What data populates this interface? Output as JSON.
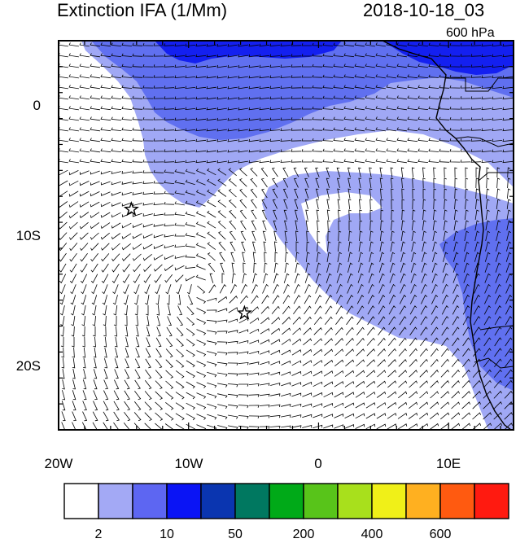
{
  "header": {
    "title": "Extinction IFA (1/Mm)",
    "datetime": "2018-10-18_03",
    "level": "600 hPa"
  },
  "map": {
    "lon_range": [
      -20,
      15
    ],
    "lat_range": [
      -25,
      5
    ],
    "lon_ticks": [
      "20W",
      "10W",
      "0",
      "10E"
    ],
    "lat_ticks": [
      "0",
      "10S",
      "20S"
    ],
    "markers": [
      {
        "type": "star-icon",
        "lon": -14.4,
        "lat": -8.0
      },
      {
        "type": "star-icon",
        "lon": -5.7,
        "lat": -16.0
      }
    ],
    "colors": {
      "ocean": "#ffffff",
      "level1": "#a0a8f5",
      "level2": "#6070f0",
      "level3": "#1420f0"
    }
  },
  "colorbar": {
    "labels": [
      "2",
      "10",
      "50",
      "200",
      "400",
      "600"
    ],
    "colors": [
      "#ffffff",
      "#a3a9f5",
      "#5d66f2",
      "#0a14f5",
      "#0a35b0",
      "#007860",
      "#00aa18",
      "#58c41a",
      "#a8e01c",
      "#f0f018",
      "#ffb020",
      "#ff5a10",
      "#ff1a10"
    ]
  }
}
